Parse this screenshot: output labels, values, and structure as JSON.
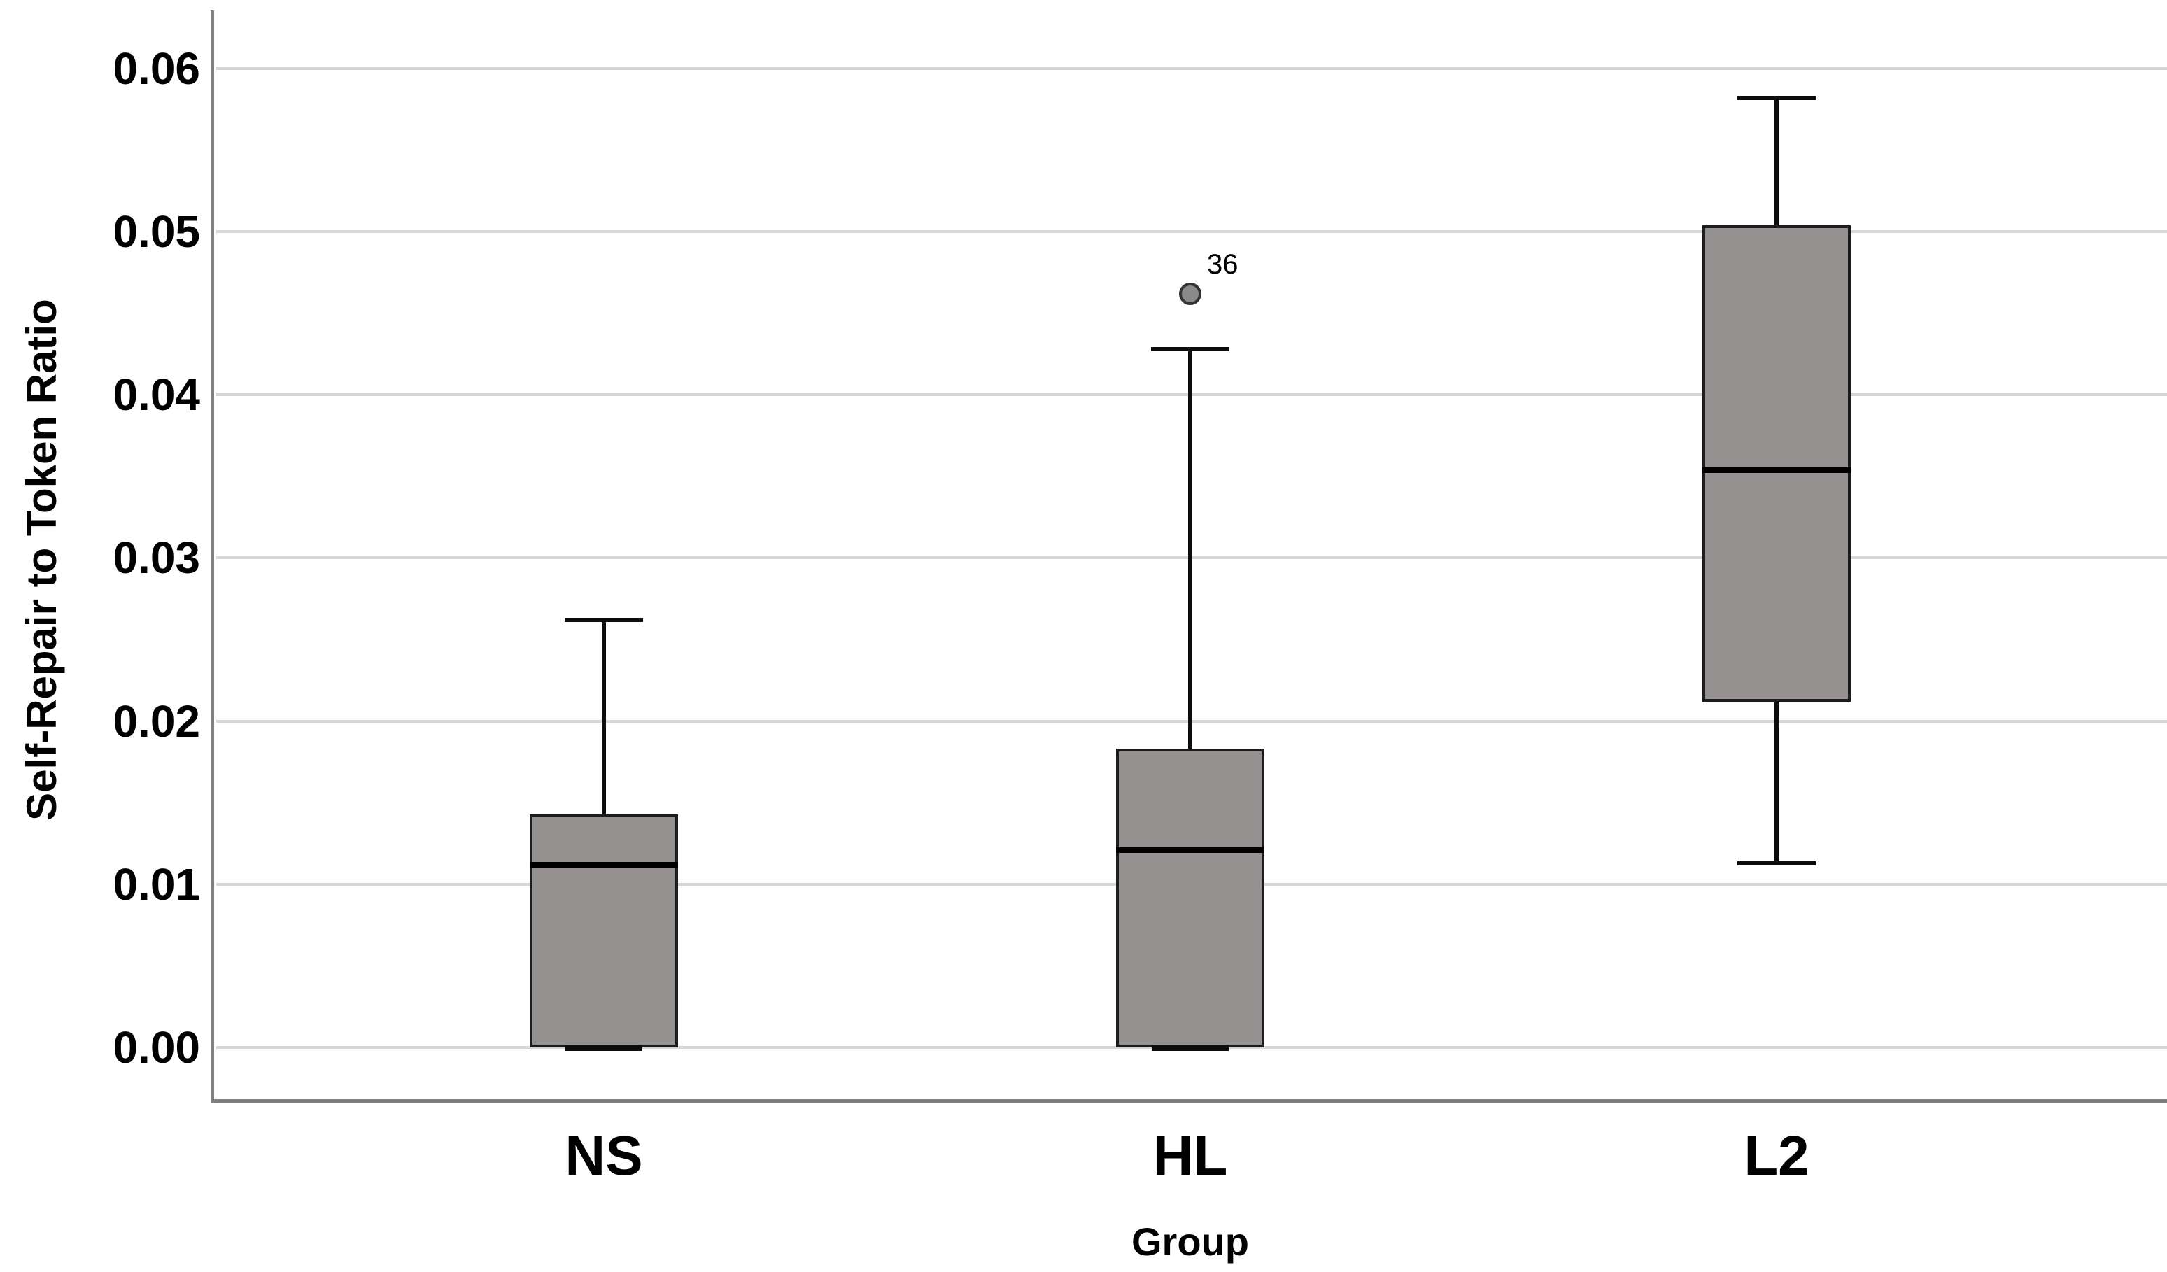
{
  "chart_data": {
    "type": "boxplot",
    "title": "",
    "xlabel": "Group",
    "ylabel": "Self-Repair to Token Ratio",
    "categories": [
      "NS",
      "HL",
      "L2"
    ],
    "yticks": [
      "0.00",
      "0.01",
      "0.02",
      "0.03",
      "0.04",
      "0.05",
      "0.06"
    ],
    "ytick_values": [
      0.0,
      0.01,
      0.02,
      0.03,
      0.04,
      0.05,
      0.06
    ],
    "ylim": [
      -0.0033,
      0.0633
    ],
    "grid": true,
    "legend": false,
    "series": [
      {
        "group": "NS",
        "whisker_low": 0.0,
        "q1": 0.0,
        "median": 0.0112,
        "q3": 0.0143,
        "whisker_high": 0.0262,
        "outliers": []
      },
      {
        "group": "HL",
        "whisker_low": 0.0,
        "q1": 0.0,
        "median": 0.0121,
        "q3": 0.0183,
        "whisker_high": 0.0428,
        "outliers": [
          {
            "value": 0.0462,
            "label": "36"
          }
        ]
      },
      {
        "group": "L2",
        "whisker_low": 0.0113,
        "q1": 0.0212,
        "median": 0.0354,
        "q3": 0.0504,
        "whisker_high": 0.0582,
        "outliers": []
      }
    ],
    "colors": {
      "box_fill": "#949190",
      "box_border": "#1c1c1c",
      "median": "#000000",
      "whisker": "#0d0d0d",
      "gridline": "#d6d6d6",
      "axis_line": "#7f7f7f",
      "outlier_fill": "#8a8a8a",
      "outlier_stroke": "#333333",
      "text": "#000000"
    }
  }
}
